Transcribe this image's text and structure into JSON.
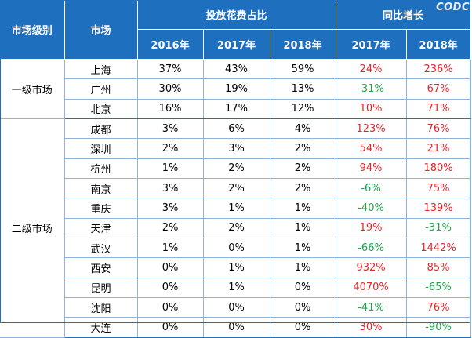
{
  "header": {
    "tier": "市场级别",
    "market": "市场",
    "spend_share": "投放花费占比",
    "yoy_growth": "同比增长",
    "years_share": [
      "2016年",
      "2017年",
      "2018年"
    ],
    "years_growth": [
      "2017年",
      "2018年"
    ]
  },
  "watermark": "CODC",
  "tiers": [
    {
      "label": "一级市场",
      "rows": [
        {
          "city": "上海",
          "s2016": "37%",
          "s2017": "43%",
          "s2018": "59%",
          "g2017": "24%",
          "g2018": "236%"
        },
        {
          "city": "广州",
          "s2016": "30%",
          "s2017": "19%",
          "s2018": "13%",
          "g2017": "-31%",
          "g2018": "67%"
        },
        {
          "city": "北京",
          "s2016": "16%",
          "s2017": "17%",
          "s2018": "12%",
          "g2017": "10%",
          "g2018": "71%"
        }
      ]
    },
    {
      "label": "二级市场",
      "rows": [
        {
          "city": "成都",
          "s2016": "3%",
          "s2017": "6%",
          "s2018": "4%",
          "g2017": "123%",
          "g2018": "76%"
        },
        {
          "city": "深圳",
          "s2016": "2%",
          "s2017": "3%",
          "s2018": "2%",
          "g2017": "54%",
          "g2018": "21%"
        },
        {
          "city": "杭州",
          "s2016": "1%",
          "s2017": "2%",
          "s2018": "2%",
          "g2017": "94%",
          "g2018": "180%"
        },
        {
          "city": "南京",
          "s2016": "3%",
          "s2017": "2%",
          "s2018": "2%",
          "g2017": "-6%",
          "g2018": "75%"
        },
        {
          "city": "重庆",
          "s2016": "3%",
          "s2017": "1%",
          "s2018": "1%",
          "g2017": "-40%",
          "g2018": "139%"
        },
        {
          "city": "天津",
          "s2016": "2%",
          "s2017": "2%",
          "s2018": "1%",
          "g2017": "19%",
          "g2018": "-31%"
        },
        {
          "city": "武汉",
          "s2016": "1%",
          "s2017": "0%",
          "s2018": "1%",
          "g2017": "-66%",
          "g2018": "1442%"
        },
        {
          "city": "西安",
          "s2016": "0%",
          "s2017": "1%",
          "s2018": "1%",
          "g2017": "932%",
          "g2018": "85%"
        },
        {
          "city": "昆明",
          "s2016": "0%",
          "s2017": "1%",
          "s2018": "0%",
          "g2017": "4070%",
          "g2018": "-65%"
        },
        {
          "city": "沈阳",
          "s2016": "0%",
          "s2017": "0%",
          "s2018": "0%",
          "g2017": "-41%",
          "g2018": "76%"
        },
        {
          "city": "大连",
          "s2016": "0%",
          "s2017": "0%",
          "s2018": "0%",
          "g2017": "30%",
          "g2018": "-90%"
        }
      ]
    }
  ],
  "colors": {
    "header_bg": "#1f6fbf",
    "positive": "#e0262b",
    "negative": "#1fa34a"
  }
}
